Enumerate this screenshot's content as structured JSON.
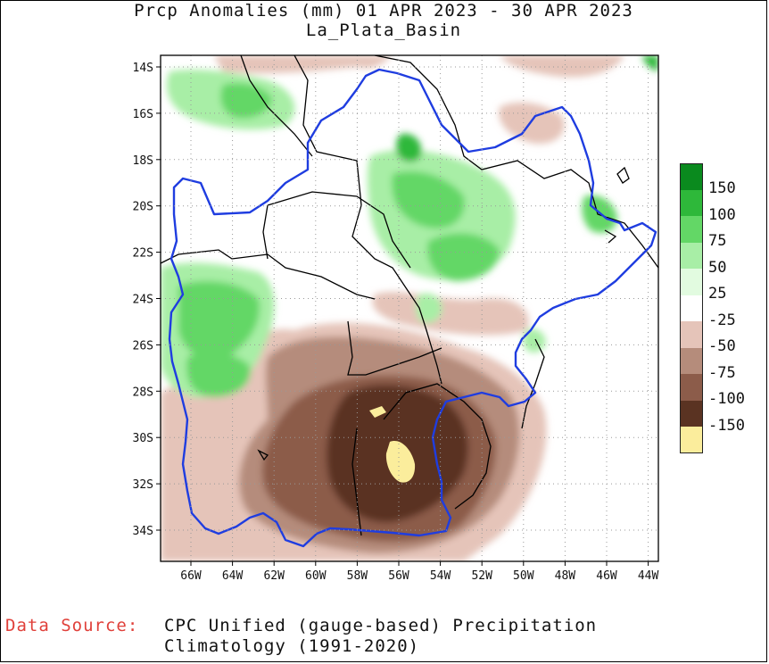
{
  "title": "Prcp Anomalies (mm) 01 APR 2023 - 30 APR 2023",
  "subtitle": "La_Plata_Basin",
  "axes": {
    "lat_labels": [
      "14S",
      "16S",
      "18S",
      "20S",
      "22S",
      "24S",
      "26S",
      "28S",
      "30S",
      "32S",
      "34S"
    ],
    "lon_labels": [
      "66W",
      "64W",
      "62W",
      "60W",
      "58W",
      "56W",
      "54W",
      "52W",
      "50W",
      "48W",
      "46W",
      "44W"
    ]
  },
  "legend": [
    {
      "label": "150",
      "color": "#0a8a1e"
    },
    {
      "label": "100",
      "color": "#2eb83a"
    },
    {
      "label": "75",
      "color": "#63d766"
    },
    {
      "label": "50",
      "color": "#a8eea6"
    },
    {
      "label": "25",
      "color": "#e2fbe0"
    },
    {
      "label": "-25",
      "color": "#ffffff"
    },
    {
      "label": "-50",
      "color": "#e5c4b9"
    },
    {
      "label": "-75",
      "color": "#b58c7b"
    },
    {
      "label": "-100",
      "color": "#8c5c4a"
    },
    {
      "label": "-150",
      "color": "#5a3322"
    },
    {
      "label": "",
      "color": "#fbed9c"
    }
  ],
  "source": {
    "label": "Data Source:",
    "line1": "CPC Unified (gauge-based) Precipitation",
    "line2": "Climatology (1991-2020)"
  },
  "colors": {
    "basin_outline": "#1f3de0",
    "borders": "#000000"
  }
}
